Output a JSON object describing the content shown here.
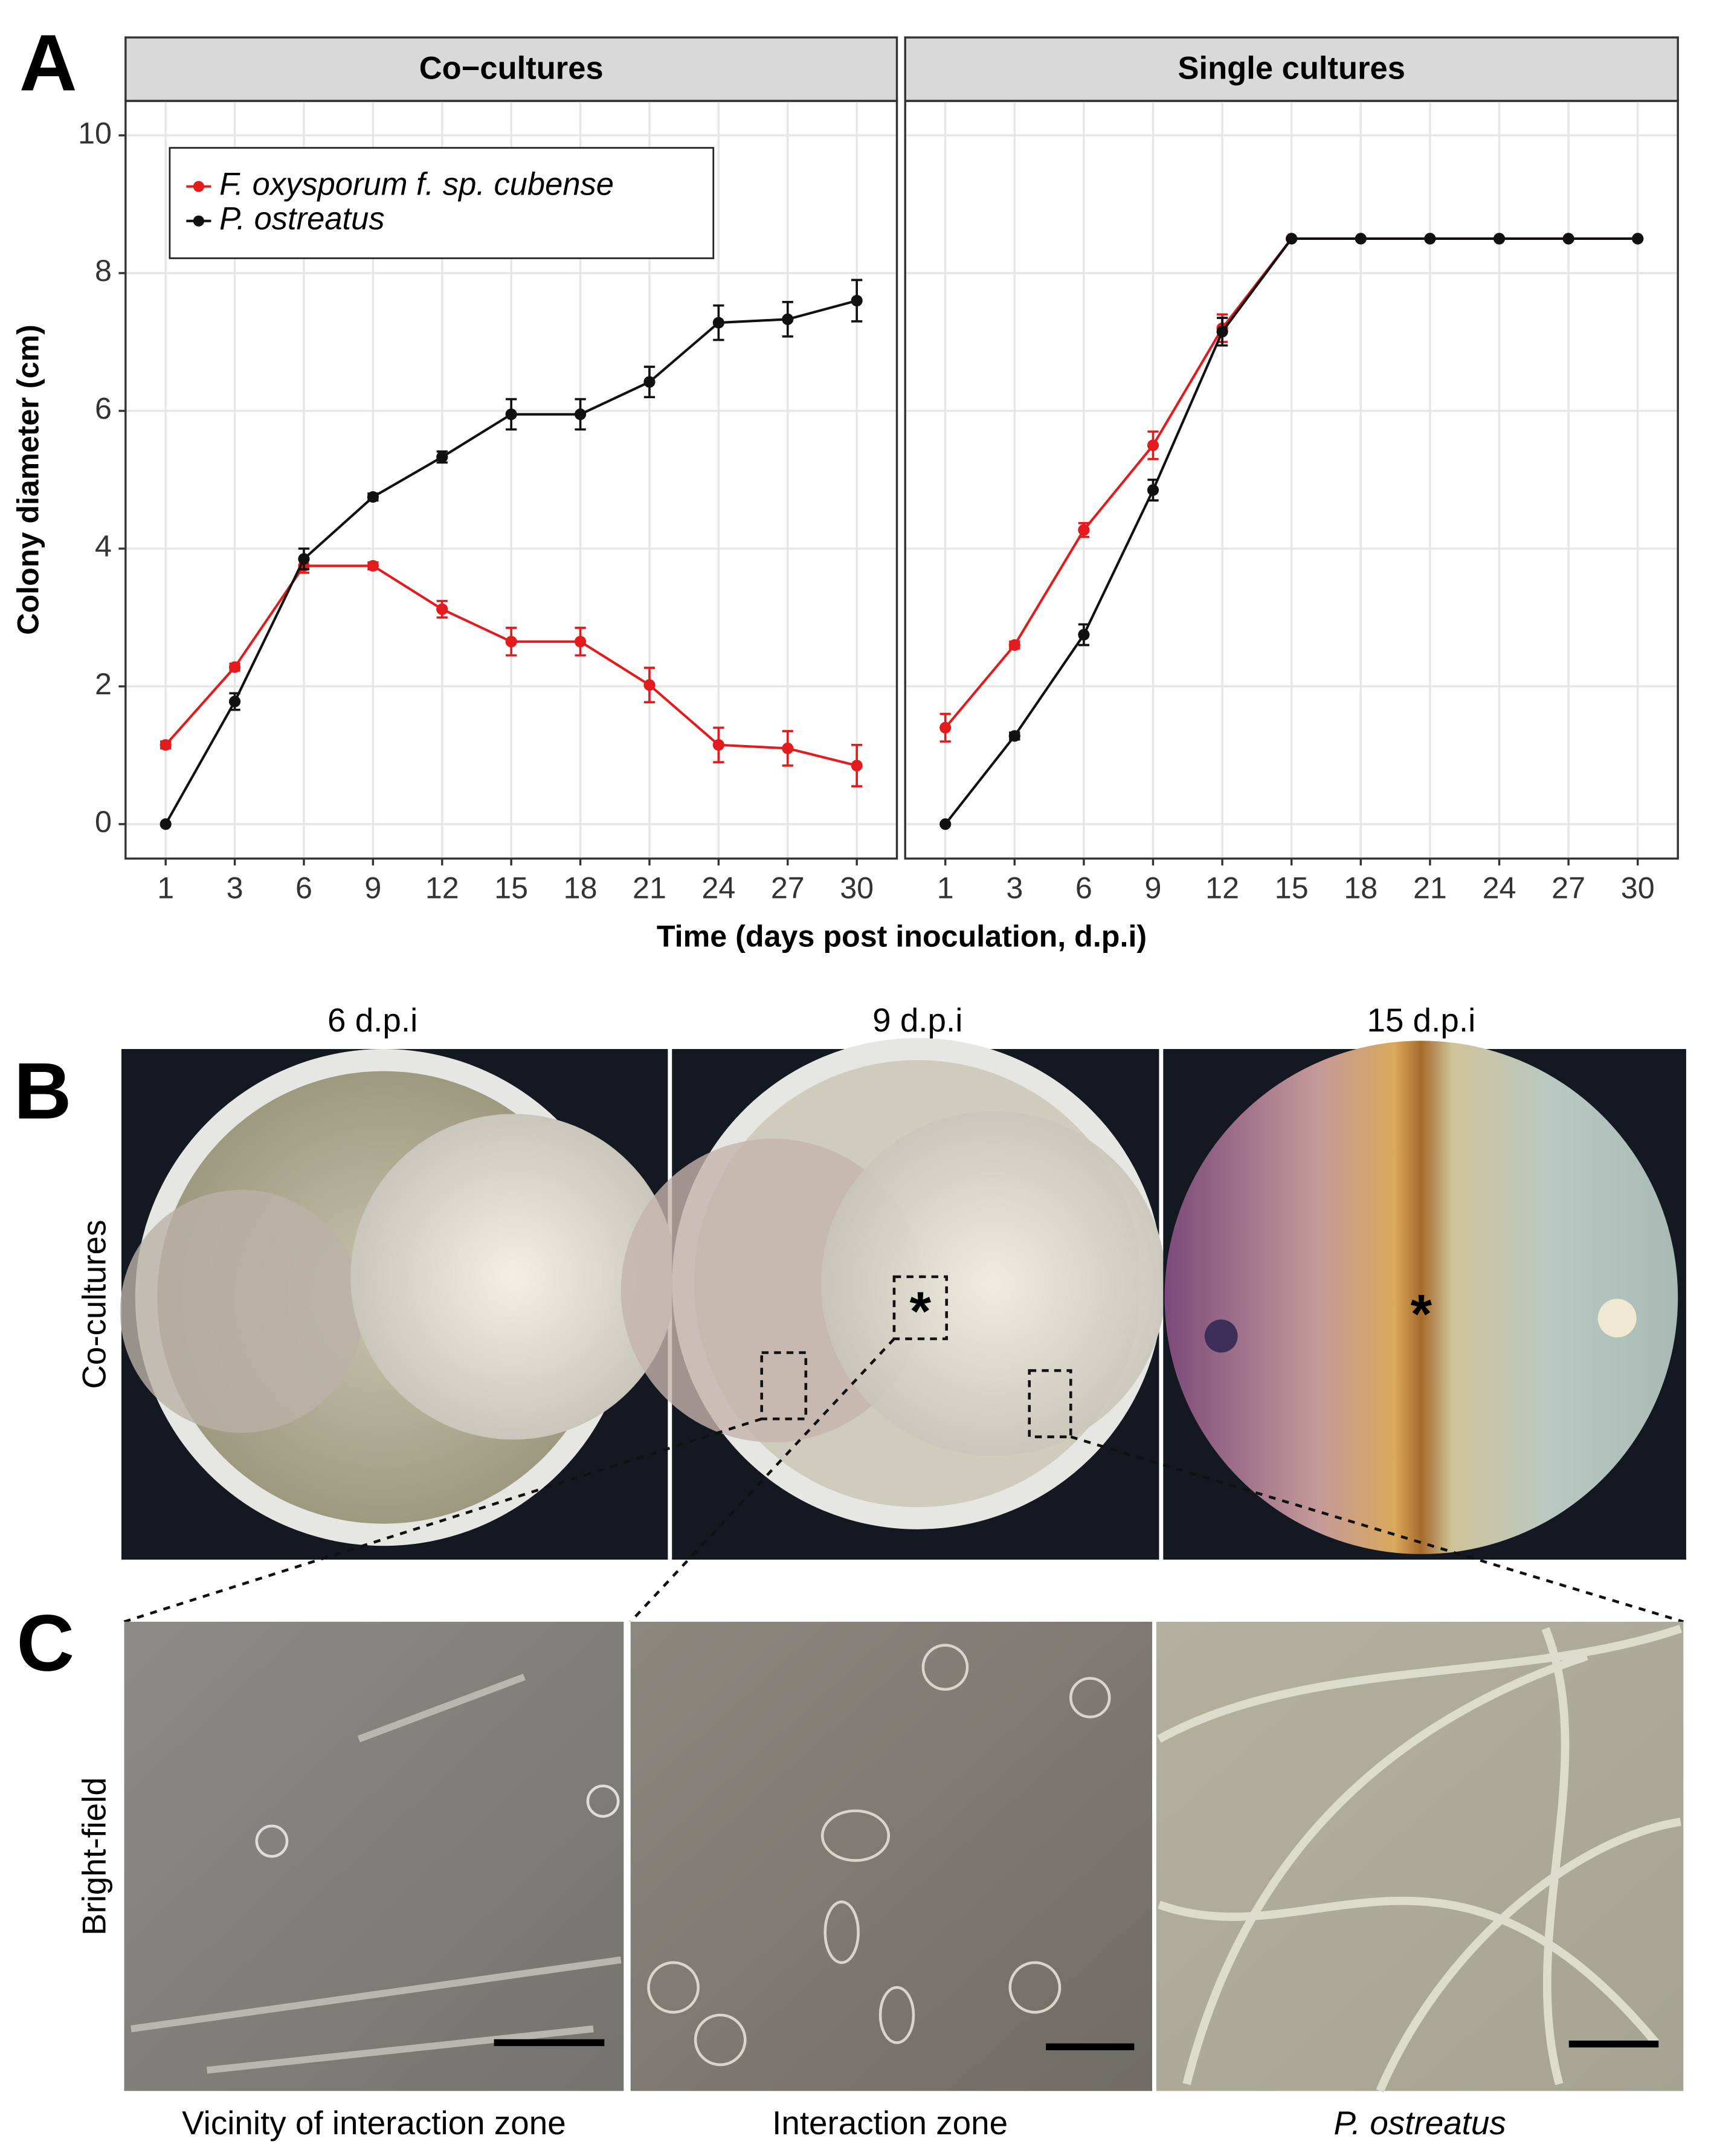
{
  "panel_a_label": "A",
  "chart_data": [
    {
      "type": "line",
      "title": "Co−cultures",
      "x_label": "Time (days post inoculation, d.p.i)",
      "y_label": "Colony diameter (cm)",
      "categories": [
        "1",
        "3",
        "6",
        "9",
        "12",
        "15",
        "18",
        "21",
        "24",
        "27",
        "30"
      ],
      "ylim": [
        -0.5,
        10.5
      ],
      "yticks": [
        0,
        2,
        4,
        6,
        8,
        10
      ],
      "grid": true,
      "legend": "top-left",
      "series": [
        {
          "name": "F. oxysporum f. sp. cubense",
          "color": "#e41a1c",
          "values": [
            1.15,
            2.28,
            3.75,
            3.75,
            3.12,
            2.65,
            2.65,
            2.02,
            1.15,
            1.1,
            0.85
          ],
          "errors": [
            0.05,
            0.05,
            0.1,
            0.05,
            0.12,
            0.2,
            0.2,
            0.25,
            0.25,
            0.25,
            0.3
          ]
        },
        {
          "name": "P. ostreatus",
          "color": "#111111",
          "values": [
            0,
            1.78,
            3.85,
            4.75,
            5.33,
            5.95,
            5.95,
            6.42,
            7.28,
            7.33,
            7.6
          ],
          "errors": [
            0,
            0.12,
            0.15,
            0.05,
            0.08,
            0.22,
            0.22,
            0.22,
            0.25,
            0.25,
            0.3
          ]
        }
      ]
    },
    {
      "type": "line",
      "title": "Single cultures",
      "categories": [
        "1",
        "3",
        "6",
        "9",
        "12",
        "15",
        "18",
        "21",
        "24",
        "27",
        "30"
      ],
      "ylim": [
        -0.5,
        10.5
      ],
      "yticks": [
        0,
        2,
        4,
        6,
        8,
        10
      ],
      "grid": true,
      "series": [
        {
          "color": "#e41a1c",
          "values": [
            1.4,
            2.6,
            4.27,
            5.5,
            7.2,
            8.5,
            8.5,
            8.5,
            8.5,
            8.5,
            8.5
          ],
          "errors": [
            0.2,
            0.05,
            0.1,
            0.2,
            0.2,
            0,
            0,
            0,
            0,
            0,
            0
          ]
        },
        {
          "color": "#111111",
          "values": [
            0,
            1.28,
            2.75,
            4.85,
            7.15,
            8.5,
            8.5,
            8.5,
            8.5,
            8.5,
            8.5
          ],
          "errors": [
            0,
            0.05,
            0.15,
            0.15,
            0.2,
            0,
            0,
            0,
            0,
            0,
            0
          ]
        }
      ]
    }
  ],
  "panel_b": {
    "label": "B",
    "row_label": "Co-cultures",
    "columns": [
      "6 d.p.i",
      "9 d.p.i",
      "15 d.p.i"
    ],
    "annotation": "*"
  },
  "panel_c": {
    "label": "C",
    "row_label": "Bright-field",
    "captions": [
      "Vicinity of interaction zone",
      "Interaction zone",
      "P. ostreatus"
    ]
  }
}
